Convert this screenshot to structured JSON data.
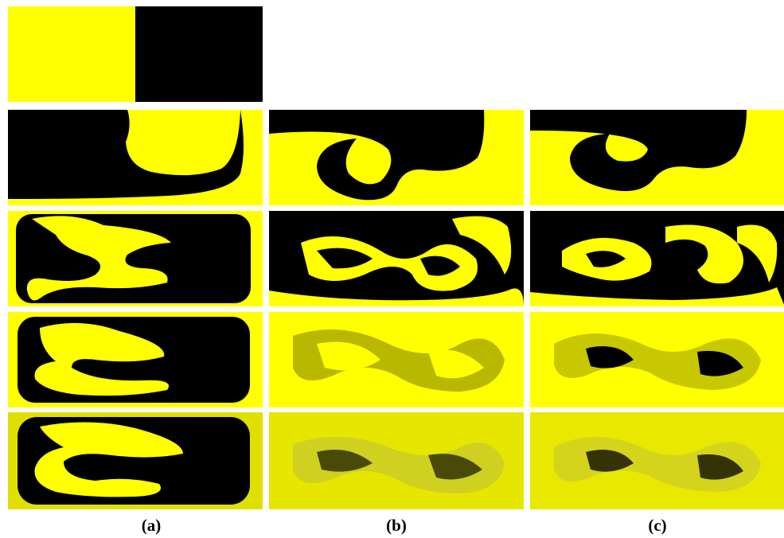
{
  "figure": {
    "colors": {
      "fluid_a": "#ffff00",
      "fluid_b": "#000000",
      "background": "#ffffff"
    },
    "captions": {
      "a": "(a)",
      "b": "(b)",
      "c": "(c)"
    },
    "columns": [
      "a",
      "b",
      "c"
    ],
    "rows": 5,
    "description_initial_condition": "split"
  }
}
